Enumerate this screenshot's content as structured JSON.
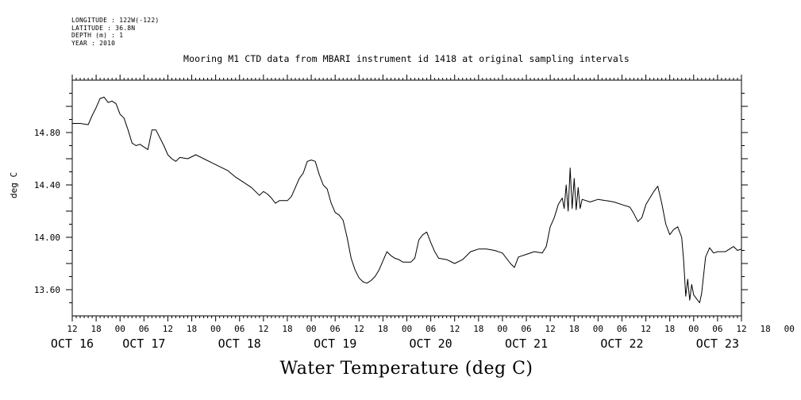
{
  "meta": {
    "longitude": "LONGITUDE : 122W(-122)",
    "latitude": "LATITUDE : 36.8N",
    "depth": "DEPTH (m) : 1",
    "year": "YEAR : 2010"
  },
  "chart_data": {
    "type": "line",
    "title": "Mooring M1 CTD data from MBARI instrument id 1418 at original sampling intervals",
    "xlabel": "Water Temperature (deg C)",
    "ylabel": "deg C",
    "x_unit": "hours since Oct 16 12:00, 2010",
    "xlim": [
      0,
      168
    ],
    "ylim": [
      13.4,
      15.2
    ],
    "yticks": [
      "14.80",
      "14.40",
      "14.00",
      "13.60"
    ],
    "ytick_values": [
      14.8,
      14.4,
      14.0,
      13.6
    ],
    "hour_tick_labels": [
      "12",
      "18",
      "00",
      "06",
      "12",
      "18",
      "00",
      "06",
      "12",
      "18",
      "00",
      "06",
      "12",
      "18",
      "00",
      "06",
      "12",
      "18",
      "00",
      "06",
      "12",
      "18",
      "00",
      "06",
      "12",
      "18",
      "00",
      "06",
      "12",
      "18",
      "00",
      "06",
      "12"
    ],
    "date_labels": [
      "OCT 16",
      "OCT 17",
      "OCT 18",
      "OCT 19",
      "OCT 20",
      "OCT 21",
      "OCT 22",
      "OCT 23"
    ],
    "date_label_hours": [
      0,
      18,
      42,
      66,
      90,
      114,
      138,
      162
    ],
    "series": [
      {
        "values": [
          [
            0,
            14.87
          ],
          [
            2,
            14.87
          ],
          [
            4,
            14.86
          ],
          [
            5,
            14.93
          ],
          [
            6,
            14.99
          ],
          [
            7,
            15.06
          ],
          [
            8,
            15.07
          ],
          [
            9,
            15.03
          ],
          [
            10,
            15.04
          ],
          [
            11,
            15.02
          ],
          [
            12,
            14.94
          ],
          [
            13,
            14.91
          ],
          [
            14,
            14.82
          ],
          [
            15,
            14.72
          ],
          [
            16,
            14.7
          ],
          [
            17,
            14.71
          ],
          [
            18,
            14.69
          ],
          [
            19,
            14.67
          ],
          [
            20,
            14.82
          ],
          [
            21,
            14.82
          ],
          [
            22,
            14.76
          ],
          [
            23,
            14.7
          ],
          [
            24,
            14.63
          ],
          [
            25,
            14.6
          ],
          [
            26,
            14.58
          ],
          [
            27,
            14.61
          ],
          [
            29,
            14.6
          ],
          [
            31,
            14.63
          ],
          [
            33,
            14.6
          ],
          [
            35,
            14.57
          ],
          [
            37,
            14.54
          ],
          [
            39,
            14.51
          ],
          [
            41,
            14.46
          ],
          [
            43,
            14.42
          ],
          [
            45,
            14.38
          ],
          [
            47,
            14.32
          ],
          [
            48,
            14.35
          ],
          [
            49,
            14.33
          ],
          [
            50,
            14.3
          ],
          [
            51,
            14.26
          ],
          [
            52,
            14.28
          ],
          [
            54,
            14.28
          ],
          [
            55,
            14.31
          ],
          [
            56,
            14.38
          ],
          [
            57,
            14.45
          ],
          [
            58,
            14.49
          ],
          [
            59,
            14.58
          ],
          [
            60,
            14.59
          ],
          [
            61,
            14.58
          ],
          [
            62,
            14.48
          ],
          [
            63,
            14.4
          ],
          [
            64,
            14.37
          ],
          [
            65,
            14.26
          ],
          [
            66,
            14.19
          ],
          [
            67,
            14.17
          ],
          [
            68,
            14.13
          ],
          [
            69,
            14.0
          ],
          [
            70,
            13.84
          ],
          [
            71,
            13.75
          ],
          [
            72,
            13.69
          ],
          [
            73,
            13.66
          ],
          [
            74,
            13.65
          ],
          [
            75,
            13.67
          ],
          [
            76,
            13.7
          ],
          [
            77,
            13.75
          ],
          [
            78,
            13.82
          ],
          [
            79,
            13.89
          ],
          [
            80,
            13.86
          ],
          [
            81,
            13.84
          ],
          [
            82,
            13.83
          ],
          [
            83,
            13.81
          ],
          [
            84,
            13.81
          ],
          [
            85,
            13.81
          ],
          [
            86,
            13.84
          ],
          [
            87,
            13.98
          ],
          [
            88,
            14.02
          ],
          [
            89,
            14.04
          ],
          [
            90,
            13.96
          ],
          [
            91,
            13.89
          ],
          [
            92,
            13.84
          ],
          [
            94,
            13.83
          ],
          [
            96,
            13.8
          ],
          [
            98,
            13.83
          ],
          [
            100,
            13.89
          ],
          [
            102,
            13.91
          ],
          [
            104,
            13.91
          ],
          [
            106,
            13.9
          ],
          [
            108,
            13.88
          ],
          [
            110,
            13.8
          ],
          [
            111,
            13.77
          ],
          [
            112,
            13.85
          ],
          [
            114,
            13.87
          ],
          [
            116,
            13.89
          ],
          [
            118,
            13.88
          ],
          [
            119,
            13.93
          ],
          [
            120,
            14.08
          ],
          [
            121,
            14.15
          ],
          [
            122,
            14.25
          ],
          [
            123,
            14.3
          ],
          [
            123.5,
            14.22
          ],
          [
            124,
            14.4
          ],
          [
            124.5,
            14.2
          ],
          [
            125,
            14.53
          ],
          [
            125.5,
            14.22
          ],
          [
            126,
            14.45
          ],
          [
            126.5,
            14.21
          ],
          [
            127,
            14.38
          ],
          [
            127.5,
            14.22
          ],
          [
            128,
            14.29
          ],
          [
            130,
            14.27
          ],
          [
            132,
            14.29
          ],
          [
            134,
            14.28
          ],
          [
            136,
            14.27
          ],
          [
            138,
            14.25
          ],
          [
            140,
            14.23
          ],
          [
            141,
            14.18
          ],
          [
            142,
            14.12
          ],
          [
            143,
            14.15
          ],
          [
            144,
            14.25
          ],
          [
            145,
            14.3
          ],
          [
            146,
            14.35
          ],
          [
            147,
            14.39
          ],
          [
            148,
            14.26
          ],
          [
            149,
            14.1
          ],
          [
            150,
            14.02
          ],
          [
            151,
            14.06
          ],
          [
            152,
            14.08
          ],
          [
            153,
            14.0
          ],
          [
            153.5,
            13.82
          ],
          [
            154,
            13.55
          ],
          [
            154.5,
            13.68
          ],
          [
            155,
            13.52
          ],
          [
            155.5,
            13.64
          ],
          [
            156,
            13.56
          ],
          [
            157,
            13.52
          ],
          [
            157.5,
            13.5
          ],
          [
            158,
            13.57
          ],
          [
            159,
            13.85
          ],
          [
            160,
            13.92
          ],
          [
            161,
            13.88
          ],
          [
            162,
            13.89
          ],
          [
            164,
            13.89
          ],
          [
            166,
            13.93
          ],
          [
            167,
            13.9
          ],
          [
            168,
            13.91
          ]
        ]
      }
    ]
  }
}
